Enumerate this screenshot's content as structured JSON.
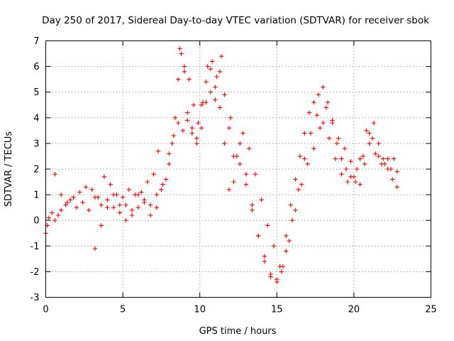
{
  "chart_data": {
    "type": "scatter",
    "title": "Day 250 of 2017, Sidereal Day-to-day VTEC variation (SDTVAR) for receiver sbok",
    "xlabel": "GPS time / hours",
    "ylabel": "SDTVAR / TECUs",
    "xlim": [
      0,
      25
    ],
    "ylim": [
      -3,
      7
    ],
    "x_ticks": [
      "0",
      "5",
      "10",
      "15",
      "20",
      "25"
    ],
    "y_ticks": [
      "-3",
      "-2",
      "-1",
      "0",
      "1",
      "2",
      "3",
      "4",
      "5",
      "6",
      "7"
    ],
    "grid": true,
    "legend": "none",
    "marker": "plus",
    "color": "#ff0000",
    "series": [
      {
        "x": [
          0,
          0.1,
          0.2,
          0.4,
          0.6,
          0.8,
          1.0,
          1.3,
          1.6,
          2.0,
          2.4,
          2.8,
          3.2,
          3.6,
          4.0,
          4.4,
          4.8,
          5.2,
          5.6,
          6.0,
          6.4,
          6.8,
          7.2,
          7.5,
          7.8,
          8.0,
          8.2,
          8.4,
          8.6,
          8.8,
          9.0,
          9.2,
          9.5,
          9.8,
          10.1,
          10.4,
          10.7,
          11.0,
          11.3,
          11.6,
          11.9,
          12.2,
          12.6,
          13.0,
          13.4,
          13.8,
          14.2,
          14.6,
          15.0,
          15.3,
          15.6,
          15.9,
          16.2,
          16.5,
          16.8,
          17.1,
          17.4,
          17.7,
          18.0,
          18.3,
          18.6,
          18.9,
          19.2,
          19.5,
          19.8,
          20.1,
          20.4,
          20.7,
          21.0,
          21.3,
          21.6,
          21.9,
          22.2,
          22.5,
          22.8
        ],
        "y": [
          -0.5,
          -0.2,
          0.1,
          0.3,
          0.0,
          0.2,
          0.4,
          0.6,
          0.8,
          0.5,
          0.7,
          0.4,
          0.9,
          0.6,
          0.8,
          0.5,
          0.3,
          0.6,
          0.2,
          0.5,
          0.8,
          0.6,
          1.0,
          1.2,
          1.6,
          2.2,
          3.0,
          4.0,
          5.5,
          6.5,
          5.8,
          4.2,
          3.6,
          3.2,
          4.5,
          5.4,
          5.9,
          5.2,
          5.8,
          4.9,
          3.6,
          1.5,
          3.0,
          1.8,
          0.6,
          -0.6,
          -1.6,
          -2.2,
          -2.4,
          -2.0,
          -0.6,
          0.6,
          1.6,
          2.5,
          3.4,
          4.2,
          4.6,
          4.9,
          5.2,
          4.6,
          3.8,
          3.0,
          2.4,
          2.0,
          1.7,
          1.5,
          1.4,
          2.2,
          3.4,
          3.8,
          3.0,
          2.4,
          2.0,
          1.6,
          1.3
        ]
      },
      {
        "x": [
          3.2,
          3.6,
          4.0,
          4.4,
          4.8,
          5.2,
          5.6,
          6.0,
          6.4,
          6.8,
          7.2,
          7.6,
          8.0,
          8.3,
          8.6,
          8.9,
          9.2,
          9.5,
          9.8,
          10.1,
          10.4,
          10.7,
          11.0,
          11.3,
          11.6,
          11.9,
          12.2,
          12.6,
          13.0,
          13.4,
          13.8,
          14.2,
          14.6,
          15.0,
          15.4,
          15.8,
          16.2,
          16.6,
          17.0,
          17.4,
          17.8,
          18.2,
          18.6,
          19.0,
          19.4,
          19.8,
          20.2,
          20.6,
          21.0,
          21.4,
          21.8,
          22.2,
          22.6
        ],
        "y": [
          -1.1,
          -0.2,
          0.5,
          1.0,
          0.6,
          0.0,
          0.4,
          1.0,
          0.7,
          0.2,
          0.5,
          1.4,
          2.6,
          3.3,
          3.8,
          3.5,
          3.9,
          3.4,
          3.0,
          3.6,
          4.6,
          5.0,
          4.7,
          4.4,
          3.0,
          1.2,
          2.5,
          2.2,
          1.4,
          0.4,
          -0.6,
          -1.4,
          -2.1,
          -2.3,
          -1.8,
          -0.8,
          0.4,
          1.4,
          2.2,
          2.8,
          3.6,
          4.4,
          3.9,
          3.2,
          2.8,
          2.3,
          2.0,
          2.5,
          3.0,
          2.6,
          2.2,
          2.4,
          2.4
        ]
      },
      {
        "x": [
          0.6,
          1.0,
          1.4,
          1.8,
          2.2,
          2.6,
          3.0,
          3.4,
          3.8,
          4.2,
          4.6,
          5.0,
          5.4,
          5.8,
          6.2,
          6.6,
          7.0,
          7.3,
          8.7,
          9.0,
          9.3,
          9.6,
          9.9,
          10.2,
          10.5,
          10.8,
          11.1,
          11.4,
          12.0,
          12.4,
          12.8,
          13.2,
          13.6,
          14.0,
          14.4,
          14.8,
          15.2,
          15.6,
          16.0,
          16.4,
          16.8,
          17.2,
          17.6,
          18.0,
          18.4,
          18.8,
          19.2,
          19.6,
          20.0,
          20.4,
          20.8,
          21.2,
          21.6,
          22.0,
          22.4,
          22.8
        ],
        "y": [
          1.8,
          1.0,
          0.7,
          0.9,
          1.1,
          1.3,
          1.2,
          0.9,
          1.7,
          1.4,
          1.0,
          0.9,
          1.2,
          1.0,
          1.1,
          1.5,
          1.8,
          2.7,
          6.7,
          6.0,
          5.5,
          4.5,
          3.8,
          4.6,
          6.0,
          6.2,
          5.6,
          6.4,
          4.0,
          2.5,
          3.4,
          2.8,
          1.8,
          0.8,
          -0.2,
          -1.0,
          -1.8,
          -1.2,
          0.0,
          1.2,
          2.4,
          3.4,
          4.1,
          3.8,
          3.2,
          2.4,
          1.8,
          1.5,
          1.7,
          2.4,
          3.5,
          3.2,
          2.5,
          2.2,
          2.0,
          1.9
        ]
      }
    ]
  }
}
